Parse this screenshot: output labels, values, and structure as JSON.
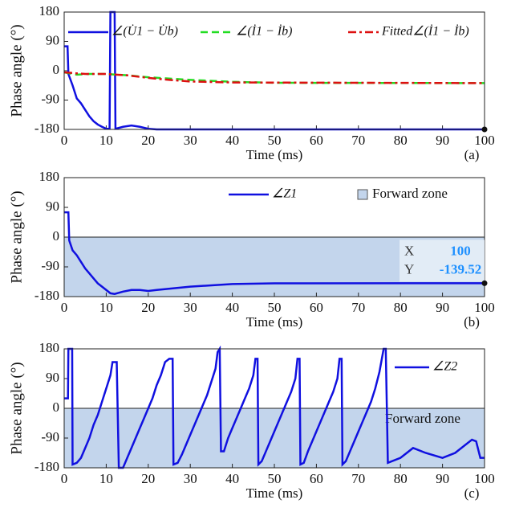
{
  "chart_data": [
    {
      "type": "line",
      "panel_label": "(a)",
      "xlabel": "Time (ms)",
      "ylabel": "Phase angle (°)",
      "xlim": [
        0,
        100
      ],
      "xticks": [
        0,
        10,
        20,
        30,
        40,
        50,
        60,
        70,
        80,
        90,
        100
      ],
      "ylim": [
        -180,
        180
      ],
      "yticks": [
        -180,
        -90,
        0,
        90,
        180
      ],
      "series": [
        {
          "name": "∠(U̇1 − U̇b)",
          "color": "#1010e0",
          "style": "solid",
          "width": 2.5,
          "x": [
            0,
            0.8,
            1,
            2,
            3,
            4,
            5,
            6,
            7,
            8,
            9,
            10,
            10.8,
            11,
            12,
            12.2,
            14,
            16,
            18,
            20,
            22,
            100
          ],
          "values": [
            75,
            75,
            -10,
            -45,
            -85,
            -100,
            -120,
            -140,
            -155,
            -165,
            -172,
            -178,
            -178,
            180,
            180,
            -178,
            -172,
            -168,
            -172,
            -178,
            -180,
            -180
          ]
        },
        {
          "name": "∠(İ1 − İb)",
          "color": "#22dd22",
          "style": "dashed",
          "width": 2.5,
          "x": [
            0,
            3,
            6,
            10,
            15,
            20,
            30,
            40,
            50,
            100
          ],
          "values": [
            -5,
            -12,
            -10,
            -10,
            -14,
            -20,
            -28,
            -34,
            -37,
            -38
          ]
        },
        {
          "name": "Fitted∠(İ1 − İb)",
          "color": "#dd1010",
          "style": "dashdot",
          "width": 2.5,
          "x": [
            0,
            5,
            10,
            15,
            20,
            25,
            30,
            40,
            100
          ],
          "values": [
            -5,
            -10,
            -10,
            -14,
            -22,
            -28,
            -33,
            -36,
            -38
          ]
        }
      ],
      "datatip": {
        "x": 100,
        "y": -180
      }
    },
    {
      "type": "line",
      "panel_label": "(b)",
      "xlabel": "Time (ms)",
      "ylabel": "Phase angle (°)",
      "xlim": [
        0,
        100
      ],
      "xticks": [
        0,
        10,
        20,
        30,
        40,
        50,
        60,
        70,
        80,
        90,
        100
      ],
      "ylim": [
        -180,
        180
      ],
      "yticks": [
        -180,
        -90,
        0,
        90,
        180
      ],
      "zone": {
        "name": "Forward zone",
        "range": [
          -180,
          0
        ],
        "color": "#c3d5ec"
      },
      "series": [
        {
          "name": "∠Z1",
          "color": "#1010e0",
          "style": "solid",
          "width": 2.5,
          "x": [
            0,
            1,
            1.2,
            2,
            3,
            4,
            5,
            6,
            7,
            8,
            9,
            10,
            11,
            12,
            14,
            16,
            18,
            20,
            22,
            30,
            40,
            50,
            100
          ],
          "values": [
            75,
            75,
            -10,
            -40,
            -55,
            -75,
            -95,
            -110,
            -125,
            -140,
            -150,
            -160,
            -170,
            -172,
            -165,
            -160,
            -160,
            -163,
            -160,
            -150,
            -142,
            -140,
            -139.52
          ]
        }
      ],
      "datatip": {
        "x": 100,
        "y": -139.52
      },
      "datatip_labels": [
        "X",
        "Y"
      ]
    },
    {
      "type": "line",
      "panel_label": "(c)",
      "xlabel": "Time (ms)",
      "ylabel": "Phase angle (°)",
      "xlim": [
        0,
        100
      ],
      "xticks": [
        0,
        10,
        20,
        30,
        40,
        50,
        60,
        70,
        80,
        90,
        100
      ],
      "ylim": [
        -180,
        180
      ],
      "yticks": [
        -180,
        -90,
        0,
        90,
        180
      ],
      "zone": {
        "name": "Forward zone",
        "range": [
          -180,
          0
        ],
        "color": "#c3d5ec"
      },
      "series": [
        {
          "name": "∠Z2",
          "color": "#1010e0",
          "style": "solid",
          "width": 2.5,
          "x": [
            0,
            0.9,
            1,
            1.9,
            2,
            3,
            4,
            5,
            6,
            7,
            8,
            9,
            10,
            11,
            11.5,
            12.5,
            13,
            14,
            15,
            16,
            17,
            18,
            19,
            20,
            21,
            22,
            23,
            24,
            25,
            25.8,
            26,
            27,
            28,
            29,
            30,
            31,
            32,
            33,
            34,
            35,
            36,
            36.5,
            37,
            37.3,
            38,
            39,
            40,
            41,
            42,
            43,
            44,
            45,
            45.5,
            46,
            46.2,
            47,
            48,
            49,
            50,
            51,
            52,
            53,
            54,
            55,
            55.5,
            56,
            56.2,
            57,
            58,
            59,
            60,
            61,
            62,
            63,
            64,
            65,
            65.5,
            66,
            66.2,
            67,
            68,
            69,
            70,
            71,
            72,
            73,
            74,
            75,
            76,
            76.5,
            77,
            80,
            83,
            86,
            90,
            93,
            97,
            98,
            99,
            100
          ],
          "values": [
            30,
            30,
            180,
            180,
            -170,
            -165,
            -150,
            -120,
            -90,
            -50,
            -20,
            20,
            60,
            100,
            140,
            140,
            -180,
            -180,
            -150,
            -120,
            -90,
            -60,
            -30,
            0,
            30,
            70,
            100,
            140,
            150,
            150,
            -170,
            -165,
            -140,
            -110,
            -80,
            -50,
            -20,
            10,
            40,
            80,
            120,
            170,
            180,
            -130,
            -130,
            -90,
            -60,
            -30,
            0,
            30,
            60,
            100,
            150,
            150,
            -170,
            -160,
            -130,
            -100,
            -70,
            -40,
            -10,
            20,
            50,
            90,
            150,
            150,
            -170,
            -165,
            -130,
            -100,
            -70,
            -40,
            -10,
            20,
            50,
            90,
            150,
            150,
            -170,
            -160,
            -130,
            -100,
            -70,
            -40,
            -10,
            20,
            60,
            110,
            180,
            180,
            -165,
            -150,
            -120,
            -135,
            -150,
            -135,
            -95,
            -100,
            -150,
            -150
          ]
        }
      ]
    }
  ]
}
